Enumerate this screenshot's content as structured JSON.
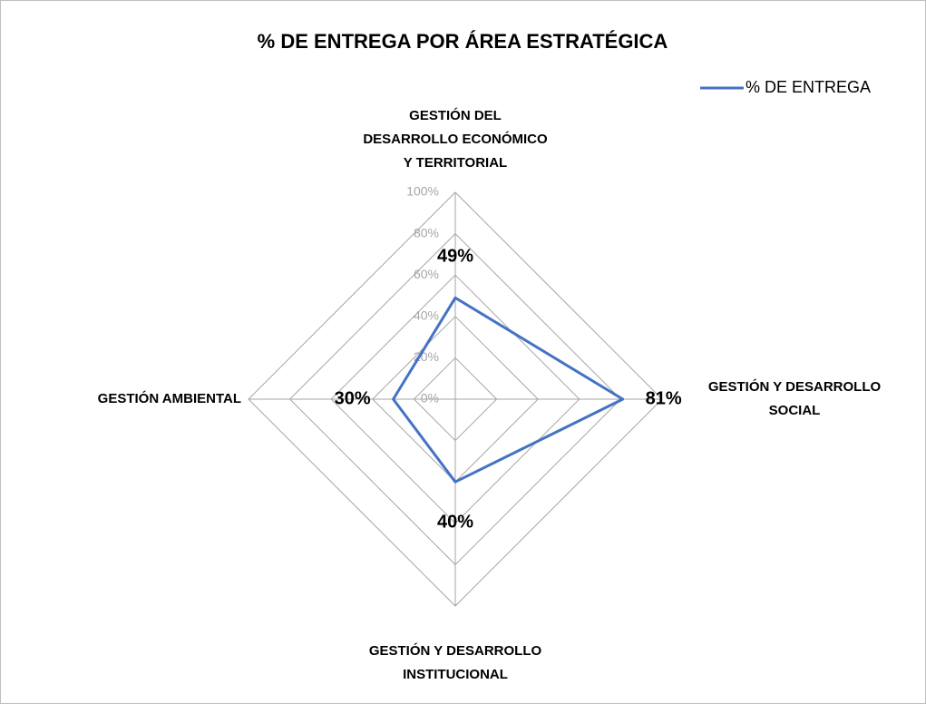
{
  "chart_data": {
    "type": "radar",
    "title": "% DE ENTREGA POR ÁREA ESTRATÉGICA",
    "categories": [
      "GESTIÓN DEL\nDESARROLLO ECONÓMICO\nY TERRITORIAL",
      "GESTIÓN Y DESARROLLO\nSOCIAL",
      "GESTIÓN Y DESARROLLO\nINSTITUCIONAL",
      "GESTIÓN AMBIENTAL"
    ],
    "series": [
      {
        "name": "% DE ENTREGA",
        "color": "#4472c4",
        "values": [
          49,
          81,
          40,
          30
        ],
        "value_labels": [
          "49%",
          "81%",
          "40%",
          "30%"
        ]
      }
    ],
    "ylim": [
      0,
      100
    ],
    "yticks": [
      {
        "value": 0,
        "label": "0%"
      },
      {
        "value": 20,
        "label": "20%"
      },
      {
        "value": 40,
        "label": "40%"
      },
      {
        "value": 60,
        "label": "60%"
      },
      {
        "value": 80,
        "label": "80%"
      },
      {
        "value": 100,
        "label": "100%"
      }
    ],
    "grid": true,
    "legend": "top-right"
  }
}
